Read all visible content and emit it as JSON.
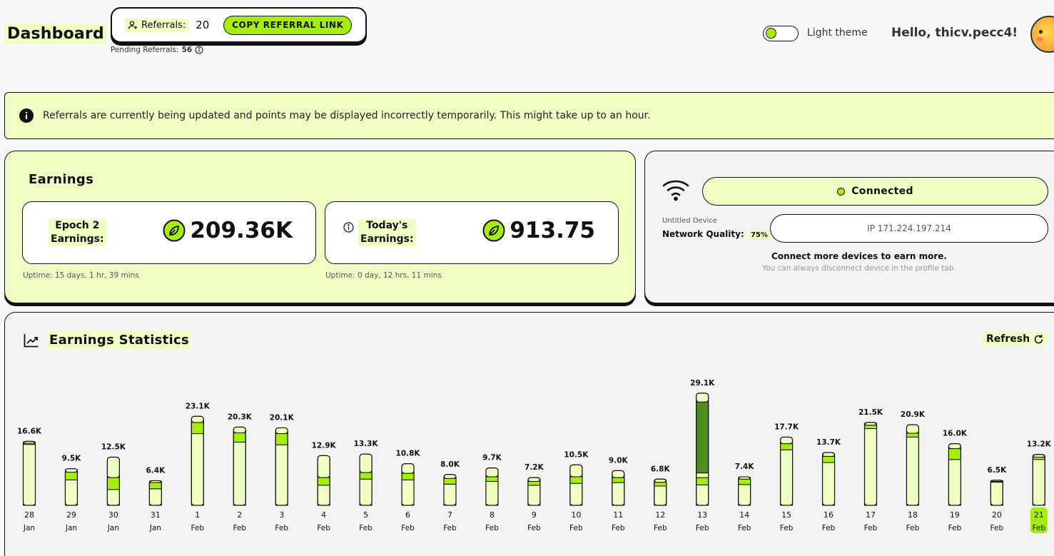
{
  "header": {
    "title": "Dashboard",
    "referrals_label": "Referrals:",
    "referrals_count": "20",
    "copy_button": "COPY REFERRAL LINK",
    "pending_label": "Pending Referrals:",
    "pending_count": "56",
    "theme_label": "Light theme",
    "greeting": "Hello, thicv.pecc4!"
  },
  "notice": {
    "text": "Referrals are currently being updated and points may be displayed incorrectly temporarily. This might take up to an hour."
  },
  "earnings": {
    "title": "Earnings",
    "epoch_label_1": "Epoch 2",
    "epoch_label_2": "Earnings:",
    "epoch_value": "209.36K",
    "epoch_uptime": "Uptime: 15 days, 1 hr, 39 mins",
    "today_label_1": "Today's",
    "today_label_2": "Earnings:",
    "today_value": "913.75",
    "today_uptime": "Uptime: 0 day, 12 hrs, 11 mins"
  },
  "device": {
    "status": "Connected",
    "name": "Untitled Device",
    "network_quality_label": "Network Quality:",
    "network_quality_value": "75%",
    "ip": "IP 171.224.197.214",
    "connect_more": "Connect more devices to earn more.",
    "connect_sub": "You can always disconnect device in the profile tab."
  },
  "stats": {
    "title": "Earnings Statistics",
    "refresh": "Refresh"
  },
  "colors": {
    "accent": "#a6ee0a",
    "light": "#efffc4",
    "dark_green": "#4d8f1c",
    "border": "#111111"
  },
  "chart_data": {
    "type": "bar",
    "stacked": true,
    "selected_index": 24,
    "categories": [
      {
        "day": "28",
        "month": "Jan"
      },
      {
        "day": "29",
        "month": "Jan"
      },
      {
        "day": "30",
        "month": "Jan"
      },
      {
        "day": "31",
        "month": "Jan"
      },
      {
        "day": "1",
        "month": "Feb"
      },
      {
        "day": "2",
        "month": "Feb"
      },
      {
        "day": "3",
        "month": "Feb"
      },
      {
        "day": "4",
        "month": "Feb"
      },
      {
        "day": "5",
        "month": "Feb"
      },
      {
        "day": "6",
        "month": "Feb"
      },
      {
        "day": "7",
        "month": "Feb"
      },
      {
        "day": "8",
        "month": "Feb"
      },
      {
        "day": "9",
        "month": "Feb"
      },
      {
        "day": "10",
        "month": "Feb"
      },
      {
        "day": "11",
        "month": "Feb"
      },
      {
        "day": "12",
        "month": "Feb"
      },
      {
        "day": "13",
        "month": "Feb"
      },
      {
        "day": "14",
        "month": "Feb"
      },
      {
        "day": "15",
        "month": "Feb"
      },
      {
        "day": "16",
        "month": "Feb"
      },
      {
        "day": "17",
        "month": "Feb"
      },
      {
        "day": "18",
        "month": "Feb"
      },
      {
        "day": "19",
        "month": "Feb"
      },
      {
        "day": "20",
        "month": "Feb"
      },
      {
        "day": "21",
        "month": "Feb"
      }
    ],
    "totals": [
      16.6,
      9.5,
      12.5,
      6.4,
      23.1,
      20.3,
      20.1,
      12.9,
      13.3,
      10.8,
      8.0,
      9.7,
      7.2,
      10.5,
      9.0,
      6.8,
      29.1,
      7.4,
      17.7,
      13.7,
      21.5,
      20.9,
      16.0,
      6.5,
      13.2
    ],
    "labels": [
      "16.6K",
      "9.5K",
      "12.5K",
      "6.4K",
      "23.1K",
      "20.3K",
      "20.1K",
      "12.9K",
      "13.3K",
      "10.8K",
      "8.0K",
      "9.7K",
      "7.2K",
      "10.5K",
      "9.0K",
      "6.8K",
      "29.1K",
      "7.4K",
      "17.7K",
      "13.7K",
      "21.5K",
      "20.9K",
      "16.0K",
      "6.5K",
      "13.2K"
    ],
    "series": [
      {
        "color": "#efffc4",
        "values": [
          15.8,
          6.6,
          4.1,
          4.3,
          18.6,
          16.4,
          15.7,
          5.2,
          6.8,
          6.6,
          5.5,
          6.2,
          5.2,
          5.7,
          5.9,
          5.0,
          5.3,
          5.4,
          14.4,
          11.1,
          19.9,
          17.7,
          11.9,
          6.0,
          11.9
        ]
      },
      {
        "color": "#a6ee0a",
        "values": [
          0.3,
          2.0,
          3.1,
          1.6,
          2.9,
          2.4,
          2.9,
          2.0,
          1.7,
          1.7,
          1.5,
          1.2,
          1.0,
          1.7,
          1.3,
          1.0,
          1.9,
          1.4,
          1.6,
          1.6,
          0.9,
          1.0,
          2.8,
          0.2,
          0.6
        ]
      },
      {
        "color": "#efffc4",
        "values": [
          0.5,
          0.9,
          5.3,
          0.5,
          1.6,
          1.5,
          1.5,
          5.7,
          4.8,
          2.5,
          1.0,
          2.3,
          1.0,
          3.1,
          1.8,
          0.8,
          1.2,
          0.6,
          1.7,
          1.0,
          0.7,
          2.2,
          1.3,
          0.3,
          0.7
        ]
      },
      {
        "color": "#4d8f1c",
        "values": [
          0,
          0,
          0,
          0,
          0,
          0,
          0,
          0,
          0,
          0,
          0,
          0,
          0,
          0,
          0,
          0,
          18.4,
          0,
          0,
          0,
          0,
          0,
          0,
          0,
          0
        ]
      },
      {
        "color": "#efffc4",
        "values": [
          0,
          0,
          0,
          0,
          0,
          0,
          0,
          0,
          0,
          0,
          0,
          0,
          0,
          0,
          0,
          0,
          2.3,
          0,
          0,
          0,
          0,
          0,
          0,
          0,
          0
        ]
      }
    ]
  }
}
